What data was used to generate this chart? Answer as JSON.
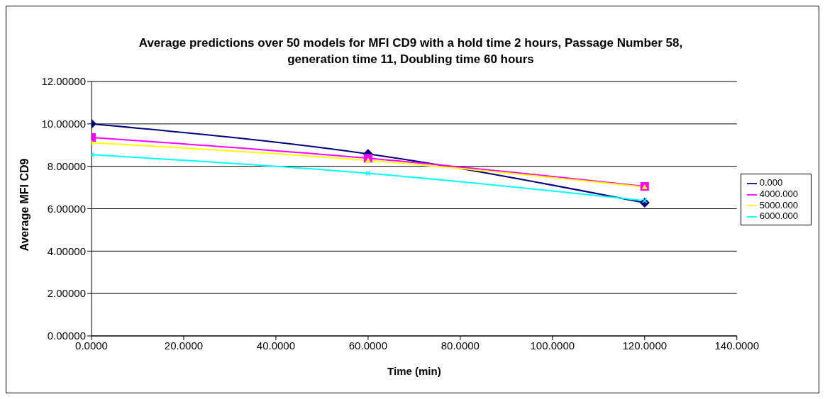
{
  "chart_data": {
    "type": "line",
    "title": "Average predictions over 50 models for MFI CD9 with a hold time 2 hours, Passage Number 58, generation time 11, Doubling time 60 hours",
    "xlabel": "Time (min)",
    "ylabel": "Average MFI CD9",
    "x": [
      0,
      60,
      120
    ],
    "series": [
      {
        "name": "0.000",
        "color": "#000080",
        "marker": "diamond",
        "values": [
          10.0,
          8.58,
          6.28
        ]
      },
      {
        "name": "4000.000",
        "color": "#ff00ff",
        "marker": "square",
        "values": [
          9.36,
          8.38,
          7.05
        ]
      },
      {
        "name": "5000.000",
        "color": "#ffff00",
        "marker": "triangle",
        "values": [
          9.12,
          8.28,
          7.02
        ]
      },
      {
        "name": "6000.000",
        "color": "#00ffff",
        "marker": "cross",
        "values": [
          8.55,
          7.67,
          6.38
        ]
      }
    ],
    "xlim": [
      0,
      140
    ],
    "xticks": [
      {
        "value": 0,
        "label": "0.0000"
      },
      {
        "value": 20,
        "label": "20.0000"
      },
      {
        "value": 40,
        "label": "40.0000"
      },
      {
        "value": 60,
        "label": "60.0000"
      },
      {
        "value": 80,
        "label": "80.0000"
      },
      {
        "value": 100,
        "label": "100.0000"
      },
      {
        "value": 120,
        "label": "120.0000"
      },
      {
        "value": 140,
        "label": "140.0000"
      }
    ],
    "ylim": [
      0,
      12
    ],
    "yticks": [
      {
        "value": 0,
        "label": "0.00000"
      },
      {
        "value": 2,
        "label": "2.00000"
      },
      {
        "value": 4,
        "label": "4.00000"
      },
      {
        "value": 6,
        "label": "6.00000"
      },
      {
        "value": 8,
        "label": "8.00000"
      },
      {
        "value": 10,
        "label": "10.00000"
      },
      {
        "value": 12,
        "label": "12.00000"
      }
    ],
    "grid": "y",
    "legend": "right",
    "line_style": "solid"
  }
}
